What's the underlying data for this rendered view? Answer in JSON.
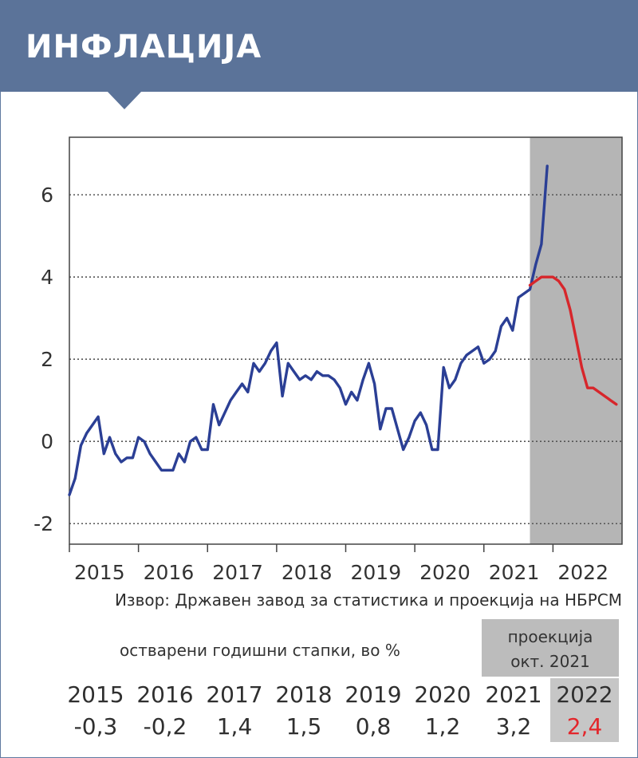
{
  "header": {
    "title": "ИНФЛАЦИЈА"
  },
  "chart_data": {
    "type": "line",
    "ylim": [
      -2.5,
      7.4
    ],
    "y_ticks": [
      -2,
      0,
      2,
      4,
      6
    ],
    "y_tick_labels": [
      "-2",
      "0",
      "2",
      "4",
      "6"
    ],
    "x_range": [
      "2015-01",
      "2023-01"
    ],
    "x_tick_labels": [
      "2015",
      "2016",
      "2017",
      "2018",
      "2019",
      "2020",
      "2021",
      "2022"
    ],
    "grid": "horizontal dotted",
    "projection_period": [
      "2021-09",
      "2022-12"
    ],
    "colors": {
      "actual": "#2b3f95",
      "projection": "#d7262b",
      "shade": "#b5b5b5"
    },
    "series": [
      {
        "role": "actual",
        "x": [
          "2015-01",
          "2015-02",
          "2015-03",
          "2015-04",
          "2015-05",
          "2015-06",
          "2015-07",
          "2015-08",
          "2015-09",
          "2015-10",
          "2015-11",
          "2015-12",
          "2016-01",
          "2016-02",
          "2016-03",
          "2016-04",
          "2016-05",
          "2016-06",
          "2016-07",
          "2016-08",
          "2016-09",
          "2016-10",
          "2016-11",
          "2016-12",
          "2017-01",
          "2017-02",
          "2017-03",
          "2017-04",
          "2017-05",
          "2017-06",
          "2017-07",
          "2017-08",
          "2017-09",
          "2017-10",
          "2017-11",
          "2017-12",
          "2018-01",
          "2018-02",
          "2018-03",
          "2018-04",
          "2018-05",
          "2018-06",
          "2018-07",
          "2018-08",
          "2018-09",
          "2018-10",
          "2018-11",
          "2018-12",
          "2019-01",
          "2019-02",
          "2019-03",
          "2019-04",
          "2019-05",
          "2019-06",
          "2019-07",
          "2019-08",
          "2019-09",
          "2019-10",
          "2019-11",
          "2019-12",
          "2020-01",
          "2020-02",
          "2020-03",
          "2020-04",
          "2020-05",
          "2020-06",
          "2020-07",
          "2020-08",
          "2020-09",
          "2020-10",
          "2020-11",
          "2020-12",
          "2021-01",
          "2021-02",
          "2021-03",
          "2021-04",
          "2021-05",
          "2021-06",
          "2021-07",
          "2021-08",
          "2021-09",
          "2021-10",
          "2021-11",
          "2021-12"
        ],
        "values": [
          -1.3,
          -0.9,
          -0.1,
          0.2,
          0.4,
          0.6,
          -0.3,
          0.1,
          -0.3,
          -0.5,
          -0.4,
          -0.4,
          0.1,
          0.0,
          -0.3,
          -0.5,
          -0.7,
          -0.7,
          -0.7,
          -0.3,
          -0.5,
          0.0,
          0.1,
          -0.2,
          -0.2,
          0.9,
          0.4,
          0.7,
          1.0,
          1.2,
          1.4,
          1.2,
          1.9,
          1.7,
          1.9,
          2.2,
          2.4,
          1.1,
          1.9,
          1.7,
          1.5,
          1.6,
          1.5,
          1.7,
          1.6,
          1.6,
          1.5,
          1.3,
          0.9,
          1.2,
          1.0,
          1.5,
          1.9,
          1.4,
          0.3,
          0.8,
          0.8,
          0.3,
          -0.2,
          0.1,
          0.5,
          0.7,
          0.4,
          -0.2,
          -0.2,
          1.8,
          1.3,
          1.5,
          1.9,
          2.1,
          2.2,
          2.3,
          1.9,
          2.0,
          2.2,
          2.8,
          3.0,
          2.7,
          3.5,
          3.6,
          3.7,
          4.3,
          4.8,
          6.7
        ]
      },
      {
        "role": "projection",
        "x": [
          "2021-09",
          "2021-10",
          "2021-11",
          "2021-12",
          "2022-01",
          "2022-02",
          "2022-03",
          "2022-04",
          "2022-05",
          "2022-06",
          "2022-07",
          "2022-08",
          "2022-09",
          "2022-10",
          "2022-11",
          "2022-12"
        ],
        "values": [
          3.8,
          3.9,
          4.0,
          4.0,
          4.0,
          3.9,
          3.7,
          3.2,
          2.5,
          1.8,
          1.3,
          1.3,
          1.2,
          1.1,
          1.0,
          0.9
        ]
      }
    ]
  },
  "source_note": "Извор: Државен завод за статистика и проекција на НБРСМ",
  "table": {
    "realized_label": "остварени годишни стапки, во %",
    "projection_label_line1": "проекција",
    "projection_label_line2": "окт. 2021",
    "years": [
      "2015",
      "2016",
      "2017",
      "2018",
      "2019",
      "2020",
      "2021",
      "2022"
    ],
    "values": [
      "-0,3",
      "-0,2",
      "1,4",
      "1,5",
      "0,8",
      "1,2",
      "3,2",
      "2,4"
    ],
    "highlight_color": "#e3262b"
  }
}
